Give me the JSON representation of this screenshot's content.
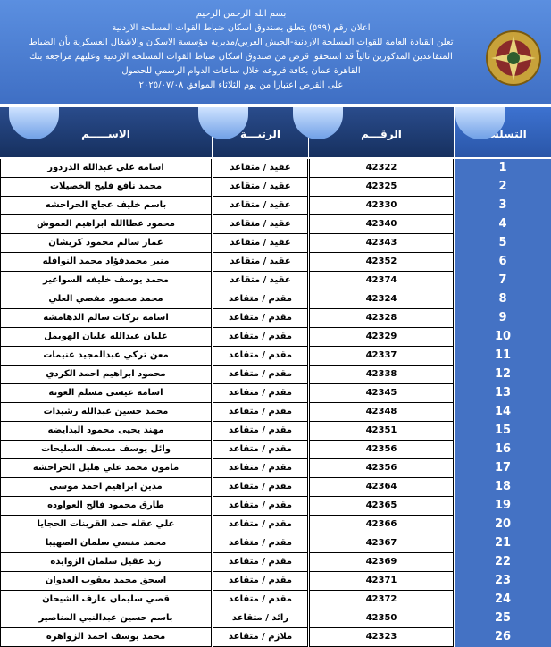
{
  "header": {
    "lines": [
      "بسم الله الرحمن الرحيم",
      "اعلان رقم (٥٩٩) يتعلق بصندوق اسكان ضباط القوات المسلحة الاردنية",
      "تعلن القيادة العامة للقوات المسلحة الاردنية-الجيش العربي/مديرية مؤسسة الاسكان والاشغال العسكرية بأن الضباط",
      "المتقاعدين المذكورين تالياً قد استحقوا قرض من صندوق اسكان ضباط القوات المسلحة الاردنيه وعليهم مراجعة بنك",
      "القاهرة عمان بكافة فروعه خلال ساعات الدوام الرسمي للحصول",
      "على القرض اعتبارا من  يوم الثلاثاء الموافق ٢٠٢٥/٠٧/٠٨"
    ]
  },
  "table": {
    "columns": [
      "الاســـــم",
      "الرتبـــة",
      "الرقـــم",
      "التسلسل"
    ],
    "rows": [
      [
        "اسامه علي عبدالله الدردور",
        "عقيد / متقاعد",
        42322,
        1
      ],
      [
        "محمد نافع فليح الخصيلات",
        "عقيد / متقاعد",
        42325,
        2
      ],
      [
        "باسم خليف عجاج الحراحشه",
        "عقيد / متقاعد",
        42330,
        3
      ],
      [
        "محمود عطاالله ابراهيم العموش",
        "عقيد / متقاعد",
        42340,
        4
      ],
      [
        "عمار سالم محمود كريشان",
        "عقيد / متقاعد",
        42343,
        5
      ],
      [
        "منير محمدفؤاد محمد النوافله",
        "عقيد / متقاعد",
        42352,
        6
      ],
      [
        "محمد يوسف خليفه السواعير",
        "عقيد / متقاعد",
        42374,
        7
      ],
      [
        "محمد محمود مفضي العلي",
        "مقدم / متقاعد",
        42324,
        8
      ],
      [
        "اسامه بركات سالم الدهامشه",
        "مقدم / متقاعد",
        42328,
        9
      ],
      [
        "عليان عبدالله عليان الهويمل",
        "مقدم / متقاعد",
        42329,
        10
      ],
      [
        "معن تركي عبدالمجيد غنيمات",
        "مقدم / متقاعد",
        42337,
        11
      ],
      [
        "محمود ابراهيم احمد الكردي",
        "مقدم / متقاعد",
        42338,
        12
      ],
      [
        "اسامه عيسى مسلم العونه",
        "مقدم / متقاعد",
        42345,
        13
      ],
      [
        "محمد حسين عبدالله رشيدات",
        "مقدم / متقاعد",
        42348,
        14
      ],
      [
        "مهند يحيى محمود البدايضه",
        "مقدم / متقاعد",
        42351,
        15
      ],
      [
        "وائل يوسف مسعف السليحات",
        "مقدم / متقاعد",
        42356,
        16
      ],
      [
        "مامون محمد علي هليل الحراحشه",
        "مقدم / متقاعد",
        42356,
        17
      ],
      [
        "مدين ابراهيم احمد موسى",
        "مقدم / متقاعد",
        42364,
        18
      ],
      [
        "طارق محمود فالح العواوده",
        "مقدم / متقاعد",
        42365,
        19
      ],
      [
        "علي عقله حمد القرينات الحجايا",
        "مقدم / متقاعد",
        42366,
        20
      ],
      [
        "محمد منسي سلمان الصهيبا",
        "مقدم / متقاعد",
        42367,
        21
      ],
      [
        "زيد عقيل سلمان الزوايده",
        "مقدم / متقاعد",
        42369,
        22
      ],
      [
        "اسحق محمد يعقوب العدوان",
        "مقدم / متقاعد",
        42371,
        23
      ],
      [
        "قصي سليمان عارف الشيحان",
        "مقدم / متقاعد",
        42372,
        24
      ],
      [
        "باسم حسين عبدالنبي المناصير",
        "رائد / متقاعد",
        42350,
        25
      ],
      [
        "محمد يوسف احمد الزواهره",
        "ملازم / متقاعد",
        42323,
        26
      ]
    ]
  }
}
